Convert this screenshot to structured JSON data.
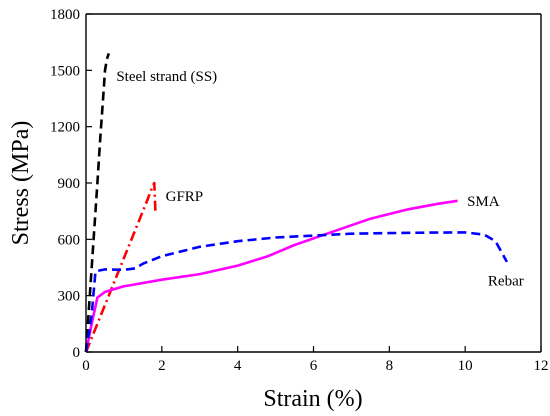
{
  "chart_data": {
    "type": "line",
    "xlabel": "Strain (%)",
    "ylabel": "Stress (MPa)",
    "xlim": [
      0,
      12
    ],
    "ylim": [
      0,
      1800
    ],
    "xticks": [
      0,
      2,
      4,
      6,
      8,
      10,
      12
    ],
    "yticks": [
      0,
      300,
      600,
      900,
      1200,
      1500,
      1800
    ],
    "grid": false,
    "legend": "none",
    "series": [
      {
        "name": "Steel strand (SS)",
        "color": "#000000",
        "dash": "dashed",
        "points": [
          [
            0,
            0
          ],
          [
            0.1,
            300
          ],
          [
            0.2,
            600
          ],
          [
            0.3,
            900
          ],
          [
            0.38,
            1150
          ],
          [
            0.45,
            1350
          ],
          [
            0.5,
            1500
          ],
          [
            0.55,
            1560
          ],
          [
            0.6,
            1590
          ]
        ]
      },
      {
        "name": "GFRP",
        "color": "#ff0000",
        "dash": "dashdot",
        "points": [
          [
            0,
            0
          ],
          [
            0.4,
            200
          ],
          [
            0.8,
            400
          ],
          [
            1.2,
            600
          ],
          [
            1.6,
            800
          ],
          [
            1.75,
            880
          ],
          [
            1.8,
            900
          ],
          [
            1.83,
            750
          ]
        ]
      },
      {
        "name": "SMA",
        "color": "#ff00ff",
        "dash": "solid",
        "points": [
          [
            0,
            0
          ],
          [
            0.15,
            150
          ],
          [
            0.3,
            290
          ],
          [
            0.5,
            320
          ],
          [
            1,
            350
          ],
          [
            2,
            385
          ],
          [
            3,
            415
          ],
          [
            4,
            460
          ],
          [
            4.8,
            510
          ],
          [
            5.5,
            570
          ],
          [
            6.5,
            640
          ],
          [
            7.5,
            710
          ],
          [
            8.5,
            760
          ],
          [
            9.3,
            790
          ],
          [
            9.8,
            805
          ]
        ]
      },
      {
        "name": "Rebar",
        "color": "#0000ff",
        "dash": "dashed",
        "points": [
          [
            0,
            0
          ],
          [
            0.15,
            200
          ],
          [
            0.25,
            430
          ],
          [
            0.5,
            440
          ],
          [
            1,
            438
          ],
          [
            1.3,
            445
          ],
          [
            1.5,
            470
          ],
          [
            2,
            510
          ],
          [
            3,
            560
          ],
          [
            4,
            590
          ],
          [
            5,
            610
          ],
          [
            6,
            620
          ],
          [
            7,
            630
          ],
          [
            8,
            633
          ],
          [
            9,
            636
          ],
          [
            10,
            637
          ],
          [
            10.5,
            625
          ],
          [
            10.8,
            590
          ],
          [
            11.1,
            480
          ]
        ]
      }
    ],
    "annotations": [
      {
        "text": "Steel strand (SS)",
        "x": 0.8,
        "y": 1470
      },
      {
        "text": "GFRP",
        "x": 2.1,
        "y": 830
      },
      {
        "text": "SMA",
        "x": 10.05,
        "y": 805
      },
      {
        "text": "Rebar",
        "x": 10.6,
        "y": 380
      }
    ]
  }
}
